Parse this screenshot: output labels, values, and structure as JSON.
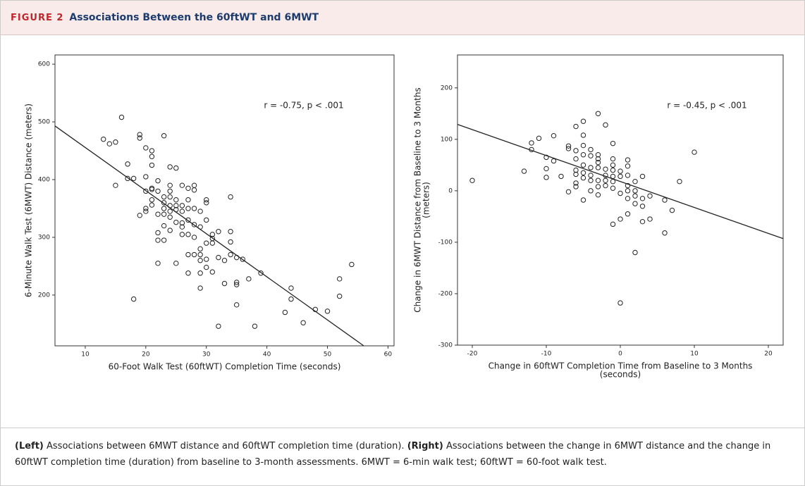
{
  "figure": {
    "label": "FIGURE 2",
    "title": "Associations Between the 60ftWT and 6MWT"
  },
  "chart_data": [
    {
      "type": "scatter",
      "xlabel": "60-Foot Walk Test (60ftWT) Completion Time (seconds)",
      "ylabel": "6-Minute Walk Test (6MWT) Distance (meters)",
      "annotation": "r = -0.75, p < .001",
      "xlim": [
        5,
        61
      ],
      "ylim": [
        112,
        616
      ],
      "xticks": [
        10,
        20,
        30,
        40,
        50,
        60
      ],
      "yticks": [
        200,
        300,
        400,
        500,
        600
      ],
      "fit_line": {
        "x": [
          5,
          56
        ],
        "y": [
          493,
          112
        ]
      },
      "x": [
        13,
        14,
        15,
        15,
        16,
        17,
        17,
        18,
        18,
        19,
        19,
        19,
        20,
        20,
        20,
        20,
        20,
        21,
        21,
        21,
        21,
        21,
        21,
        21,
        22,
        22,
        22,
        22,
        22,
        22,
        23,
        23,
        23,
        23,
        23,
        23,
        23,
        24,
        24,
        24,
        24,
        24,
        24,
        24,
        24,
        25,
        25,
        25,
        25,
        25,
        25,
        26,
        26,
        26,
        26,
        26,
        26,
        27,
        27,
        27,
        27,
        27,
        27,
        27,
        28,
        28,
        28,
        28,
        28,
        28,
        29,
        29,
        29,
        29,
        29,
        29,
        29,
        30,
        30,
        30,
        30,
        30,
        30,
        31,
        31,
        31,
        31,
        32,
        32,
        32,
        33,
        33,
        34,
        34,
        34,
        34,
        35,
        35,
        35,
        35,
        36,
        37,
        38,
        39,
        43,
        44,
        44,
        46,
        48,
        50,
        52,
        52,
        54
      ],
      "values": [
        470,
        462,
        465,
        390,
        508,
        427,
        402,
        402,
        193,
        478,
        472,
        338,
        455,
        405,
        380,
        350,
        345,
        450,
        440,
        425,
        385,
        383,
        365,
        356,
        398,
        380,
        340,
        308,
        295,
        255,
        476,
        370,
        360,
        350,
        340,
        320,
        295,
        422,
        390,
        380,
        370,
        355,
        345,
        335,
        312,
        420,
        365,
        355,
        348,
        326,
        255,
        390,
        355,
        345,
        325,
        318,
        305,
        385,
        365,
        350,
        330,
        305,
        270,
        238,
        390,
        382,
        350,
        322,
        300,
        270,
        345,
        318,
        280,
        270,
        260,
        238,
        212,
        365,
        360,
        330,
        290,
        262,
        248,
        305,
        298,
        290,
        240,
        310,
        265,
        146,
        260,
        220,
        370,
        310,
        292,
        270,
        265,
        222,
        218,
        183,
        262,
        228,
        146,
        238,
        170,
        212,
        193,
        152,
        175,
        172,
        228,
        198,
        253
      ]
    },
    {
      "type": "scatter",
      "xlabel": [
        "Change in 60ftWT Completion Time from Baseline to 3 Months",
        "(seconds)"
      ],
      "ylabel": [
        "Change in 6MWT Distance from Baseline to 3 Months",
        "(meters)"
      ],
      "annotation": "r = -0.45, p < .001",
      "xlim": [
        -22,
        22
      ],
      "ylim": [
        -300,
        264
      ],
      "xticks": [
        -20,
        -10,
        0,
        10,
        20
      ],
      "yticks": [
        -300,
        -200,
        -100,
        0,
        100,
        200
      ],
      "fit_line": {
        "x": [
          -22,
          22
        ],
        "y": [
          129,
          -93
        ]
      },
      "x": [
        -20,
        -13,
        -12,
        -12,
        -11,
        -10,
        -10,
        -10,
        -9,
        -9,
        -8,
        -7,
        -7,
        -7,
        -6,
        -6,
        -6,
        -6,
        -6,
        -6,
        -6,
        -5,
        -5,
        -5,
        -5,
        -5,
        -5,
        -5,
        -5,
        -4,
        -4,
        -4,
        -4,
        -4,
        -4,
        -3,
        -3,
        -3,
        -3,
        -3,
        -3,
        -3,
        -3,
        -2,
        -2,
        -2,
        -2,
        -2,
        -1,
        -1,
        -1,
        -1,
        -1,
        -1,
        -1,
        -1,
        0,
        0,
        0,
        0,
        0,
        1,
        1,
        1,
        1,
        1,
        1,
        1,
        2,
        2,
        2,
        2,
        2,
        3,
        3,
        3,
        3,
        4,
        4,
        6,
        6,
        7,
        8,
        10
      ],
      "values": [
        20,
        38,
        93,
        80,
        102,
        65,
        43,
        26,
        107,
        58,
        28,
        87,
        82,
        -2,
        125,
        78,
        62,
        40,
        32,
        15,
        8,
        135,
        108,
        88,
        70,
        50,
        35,
        25,
        -18,
        80,
        68,
        45,
        30,
        20,
        0,
        150,
        70,
        62,
        55,
        45,
        20,
        8,
        -8,
        128,
        42,
        30,
        20,
        10,
        92,
        62,
        50,
        40,
        28,
        18,
        5,
        -65,
        38,
        28,
        -5,
        -55,
        -218,
        60,
        48,
        30,
        10,
        0,
        -15,
        -45,
        18,
        0,
        -10,
        -25,
        -120,
        28,
        -15,
        -30,
        -60,
        -10,
        -55,
        -18,
        -82,
        -38,
        18,
        75
      ]
    }
  ],
  "caption": {
    "left_label": "(Left)",
    "left_text": "Associations between 6MWT distance and 60ftWT completion time (duration).",
    "right_label": "(Right)",
    "right_text": "Associations between the change in 6MWT distance and the change in 60ftWT completion time (duration) from baseline to 3-month assessments. 6MWT = 6-min walk test; 60ftWT = 60-foot walk test."
  }
}
